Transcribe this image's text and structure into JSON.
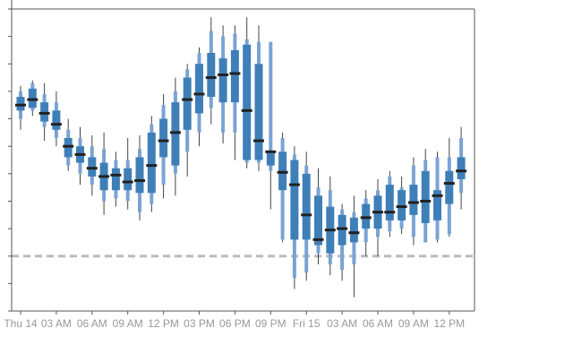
{
  "chart_data": {
    "type": "box",
    "x_tick_labels": [
      "Thu 14",
      "03 AM",
      "06 AM",
      "09 AM",
      "12 PM",
      "03 PM",
      "06 PM",
      "09 PM",
      "Fri 15",
      "03 AM",
      "06 AM",
      "09 AM",
      "12 PM"
    ],
    "ylim": [
      -2,
      9
    ],
    "reference_line_y": 0,
    "grid": false,
    "colors": {
      "outer_band": "#7aa3d4",
      "inner_band": "#3f7fb8",
      "median": "#222222",
      "whisker": "#444444",
      "reference_line": "#bbbbbb",
      "axis": "#555555",
      "tick_label": "#999999"
    },
    "boxes": [
      {
        "hour": 0,
        "min": 4.6,
        "p10": 5.0,
        "q1": 5.3,
        "median": 5.5,
        "q3": 5.8,
        "p90": 6.0,
        "max": 6.2
      },
      {
        "hour": 1,
        "min": 5.1,
        "p10": 5.3,
        "q1": 5.4,
        "median": 5.7,
        "q3": 6.1,
        "p90": 6.3,
        "max": 6.4
      },
      {
        "hour": 2,
        "min": 4.2,
        "p10": 4.7,
        "q1": 4.9,
        "median": 5.2,
        "q3": 5.6,
        "p90": 5.9,
        "max": 6.3
      },
      {
        "hour": 3,
        "min": 4.0,
        "p10": 4.3,
        "q1": 4.6,
        "median": 4.8,
        "q3": 5.3,
        "p90": 5.6,
        "max": 6.0
      },
      {
        "hour": 4,
        "min": 3.1,
        "p10": 3.3,
        "q1": 3.6,
        "median": 4.0,
        "q3": 4.3,
        "p90": 4.6,
        "max": 5.0
      },
      {
        "hour": 5,
        "min": 2.6,
        "p10": 3.0,
        "q1": 3.4,
        "median": 3.7,
        "q3": 4.0,
        "p90": 4.3,
        "max": 4.7
      },
      {
        "hour": 6,
        "min": 2.2,
        "p10": 2.6,
        "q1": 2.9,
        "median": 3.2,
        "q3": 3.6,
        "p90": 4.0,
        "max": 4.4
      },
      {
        "hour": 7,
        "min": 1.5,
        "p10": 2.0,
        "q1": 2.4,
        "median": 2.9,
        "q3": 3.4,
        "p90": 3.9,
        "max": 4.5
      },
      {
        "hour": 8,
        "min": 1.8,
        "p10": 2.1,
        "q1": 2.4,
        "median": 2.95,
        "q3": 3.2,
        "p90": 3.5,
        "max": 3.8
      },
      {
        "hour": 9,
        "min": 1.7,
        "p10": 2.0,
        "q1": 2.4,
        "median": 2.7,
        "q3": 3.2,
        "p90": 3.5,
        "max": 4.3
      },
      {
        "hour": 10,
        "min": 1.3,
        "p10": 1.6,
        "q1": 2.3,
        "median": 2.75,
        "q3": 3.6,
        "p90": 3.9,
        "max": 4.4
      },
      {
        "hour": 11,
        "min": 1.6,
        "p10": 1.9,
        "q1": 2.3,
        "median": 3.3,
        "q3": 4.5,
        "p90": 4.8,
        "max": 5.1
      },
      {
        "hour": 12,
        "min": 2.1,
        "p10": 2.6,
        "q1": 3.6,
        "median": 4.2,
        "q3": 5.0,
        "p90": 5.5,
        "max": 5.9
      },
      {
        "hour": 13,
        "min": 2.2,
        "p10": 3.0,
        "q1": 3.3,
        "median": 4.5,
        "q3": 5.6,
        "p90": 6.0,
        "max": 6.5
      },
      {
        "hour": 14,
        "min": 2.9,
        "p10": 3.8,
        "q1": 4.6,
        "median": 5.7,
        "q3": 6.5,
        "p90": 6.8,
        "max": 7.0
      },
      {
        "hour": 15,
        "min": 4.0,
        "p10": 4.5,
        "q1": 5.2,
        "median": 5.9,
        "q3": 7.0,
        "p90": 7.4,
        "max": 7.6
      },
      {
        "hour": 16,
        "min": 4.8,
        "p10": 5.4,
        "q1": 5.8,
        "median": 6.5,
        "q3": 7.4,
        "p90": 8.2,
        "max": 8.7
      },
      {
        "hour": 17,
        "min": 4.1,
        "p10": 4.5,
        "q1": 5.6,
        "median": 6.6,
        "q3": 7.2,
        "p90": 8.0,
        "max": 8.4
      },
      {
        "hour": 18,
        "min": 3.5,
        "p10": 4.5,
        "q1": 5.6,
        "median": 6.65,
        "q3": 7.5,
        "p90": 8.1,
        "max": 8.4
      },
      {
        "hour": 19,
        "min": 3.2,
        "p10": 3.4,
        "q1": 3.5,
        "median": 5.3,
        "q3": 7.7,
        "p90": 7.9,
        "max": 8.7
      },
      {
        "hour": 20,
        "min": 3.1,
        "p10": 3.4,
        "q1": 3.5,
        "median": 4.2,
        "q3": 7.0,
        "p90": 7.8,
        "max": 8.4
      },
      {
        "hour": 21,
        "min": 1.7,
        "p10": 3.1,
        "q1": 3.3,
        "median": 3.8,
        "q3": 3.8,
        "p90": 7.8,
        "max": 7.8
      },
      {
        "hour": 22,
        "min": 0.5,
        "p10": 0.6,
        "q1": 2.4,
        "median": 3.05,
        "q3": 3.8,
        "p90": 4.3,
        "max": 4.5
      },
      {
        "hour": 23,
        "min": -1.2,
        "p10": -0.8,
        "q1": 0.6,
        "median": 2.6,
        "q3": 3.5,
        "p90": 3.7,
        "max": 4.0
      },
      {
        "hour": 24,
        "min": -0.9,
        "p10": -0.6,
        "q1": 0.6,
        "median": 1.5,
        "q3": 3.0,
        "p90": 3.3,
        "max": 3.8
      },
      {
        "hour": 25,
        "min": -0.3,
        "p10": 0.1,
        "q1": 0.4,
        "median": 0.6,
        "q3": 2.2,
        "p90": 2.5,
        "max": 3.2
      },
      {
        "hour": 26,
        "min": -0.7,
        "p10": -0.3,
        "q1": 0.1,
        "median": 0.95,
        "q3": 1.8,
        "p90": 2.4,
        "max": 2.9
      },
      {
        "hour": 27,
        "min": -0.9,
        "p10": -0.5,
        "q1": 0.4,
        "median": 1.0,
        "q3": 1.5,
        "p90": 1.7,
        "max": 1.9
      },
      {
        "hour": 28,
        "min": -1.5,
        "p10": -0.3,
        "q1": 0.5,
        "median": 0.85,
        "q3": 1.4,
        "p90": 1.6,
        "max": 2.2
      },
      {
        "hour": 29,
        "min": 0.0,
        "p10": 0.5,
        "q1": 1.0,
        "median": 1.4,
        "q3": 1.9,
        "p90": 2.1,
        "max": 2.4
      },
      {
        "hour": 30,
        "min": 0.0,
        "p10": 0.7,
        "q1": 1.0,
        "median": 1.6,
        "q3": 2.2,
        "p90": 2.4,
        "max": 2.8
      },
      {
        "hour": 31,
        "min": 0.7,
        "p10": 0.9,
        "q1": 1.3,
        "median": 1.6,
        "q3": 2.6,
        "p90": 2.9,
        "max": 3.1
      },
      {
        "hour": 32,
        "min": 0.8,
        "p10": 1.0,
        "q1": 1.3,
        "median": 1.8,
        "q3": 2.4,
        "p90": 2.5,
        "max": 2.9
      },
      {
        "hour": 33,
        "min": 0.4,
        "p10": 0.7,
        "q1": 1.5,
        "median": 1.95,
        "q3": 2.6,
        "p90": 3.3,
        "max": 3.6
      },
      {
        "hour": 34,
        "min": 0.5,
        "p10": 0.5,
        "q1": 1.2,
        "median": 2.0,
        "q3": 3.1,
        "p90": 3.5,
        "max": 3.9
      },
      {
        "hour": 35,
        "min": 0.5,
        "p10": 0.6,
        "q1": 1.3,
        "median": 2.2,
        "q3": 2.4,
        "p90": 3.6,
        "max": 3.8
      },
      {
        "hour": 36,
        "min": 0.7,
        "p10": 0.8,
        "q1": 1.9,
        "median": 2.65,
        "q3": 3.1,
        "p90": 3.6,
        "max": 4.3
      },
      {
        "hour": 37,
        "min": 1.7,
        "p10": 2.3,
        "q1": 2.8,
        "median": 3.1,
        "q3": 3.6,
        "p90": 4.3,
        "max": 4.7
      }
    ]
  }
}
